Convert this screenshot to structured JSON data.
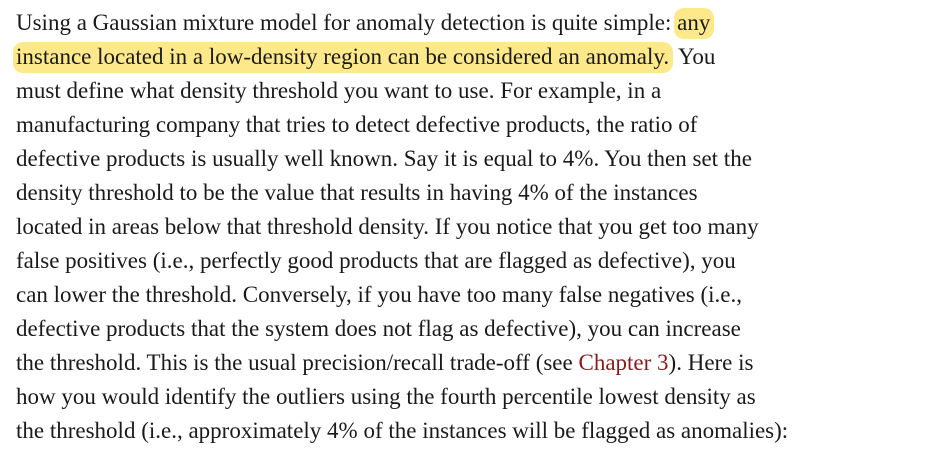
{
  "paragraph": {
    "lines": [
      {
        "before": "Using a Gaussian mixture model for anomaly detection is quite simple: ",
        "highlight": "any",
        "after": ""
      },
      {
        "before": "",
        "highlight": "instance located in a low-density region can be considered an anomaly.",
        "after": " You"
      },
      {
        "text": "must define what density threshold you want to use. For example, in a"
      },
      {
        "text": "manufacturing company that tries to detect defective products, the ratio of"
      },
      {
        "text": "defective products is usually well known. Say it is equal to 4%. You then set the"
      },
      {
        "text": "density threshold to be the value that results in having 4% of the instances"
      },
      {
        "text": "located in areas below that threshold density. If you notice that you get too many"
      },
      {
        "text": "false positives (i.e., perfectly good products that are flagged as defective), you"
      },
      {
        "text": "can lower the threshold. Conversely, if you have too many false negatives (i.e.,"
      },
      {
        "text": "defective products that the system does not flag as defective), you can increase"
      },
      {
        "before": "the threshold. This is the usual precision/recall trade-off (see ",
        "link": "Chapter 3",
        "after": "). Here is"
      },
      {
        "text": "how you would identify the outliers using the fourth percentile lowest density as"
      },
      {
        "text": "the threshold (i.e., approximately 4% of the instances will be flagged as anomalies):"
      }
    ]
  },
  "colors": {
    "highlight": "#fde98a",
    "link": "#8b1a1a",
    "text": "#1a1a1a"
  }
}
